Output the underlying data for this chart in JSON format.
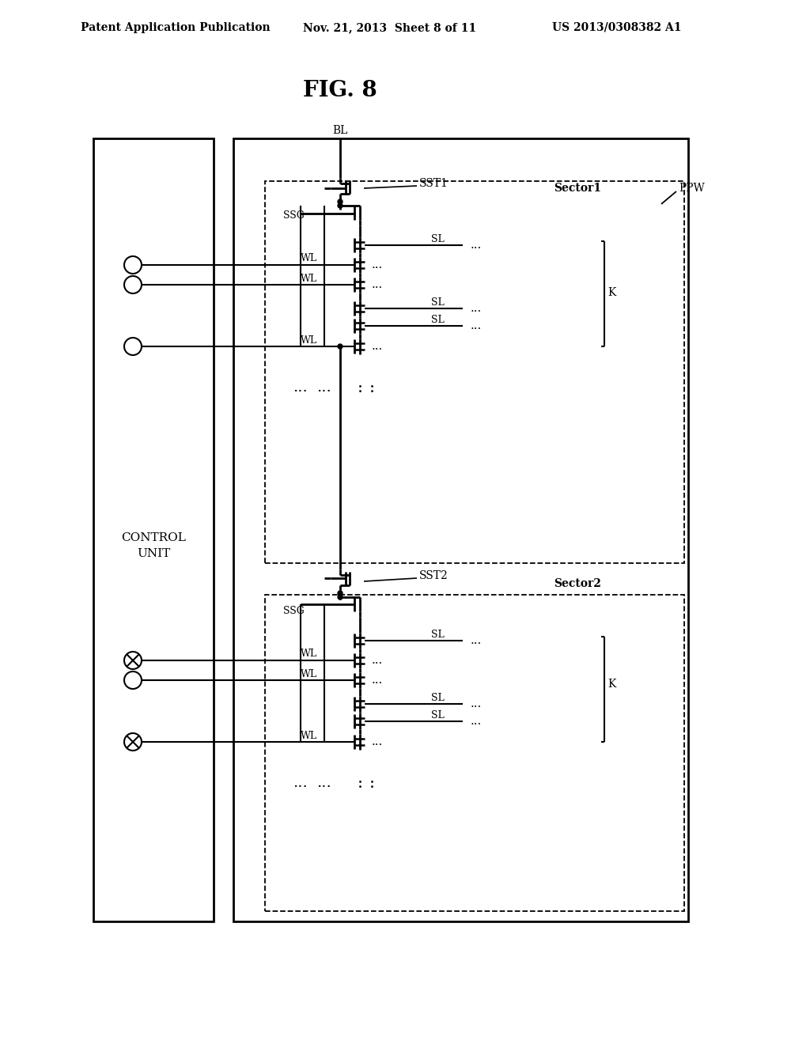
{
  "title": "FIG. 8",
  "header_left": "Patent Application Publication",
  "header_mid": "Nov. 21, 2013  Sheet 8 of 11",
  "header_right": "US 2013/0308382 A1",
  "bg_color": "#ffffff"
}
